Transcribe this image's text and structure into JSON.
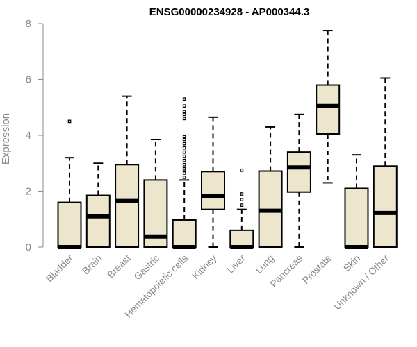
{
  "colors": {
    "box_fill": "#ede6cd",
    "stroke": "#000000",
    "axis": "#8a8a8a"
  },
  "chart_data": {
    "type": "boxplot",
    "title": "ENSG00000234928 - AP000344.3",
    "ylabel": "Expression",
    "xlabel": "",
    "ylim": [
      0,
      8
    ],
    "yticks": [
      0,
      2,
      4,
      6,
      8
    ],
    "grid": false,
    "categories": [
      "Bladder",
      "Brain",
      "Breast",
      "Gastric",
      "Hematopoietic cells",
      "Kidney",
      "Liver",
      "Lung",
      "Pancreas",
      "Prostate",
      "Skin",
      "Unknown / Other"
    ],
    "boxes": [
      {
        "q1": 0,
        "median": 0,
        "q3": 1.6,
        "whisker_low": 0,
        "whisker_high": 3.2,
        "outliers": [
          4.5
        ]
      },
      {
        "q1": 0,
        "median": 1.1,
        "q3": 1.85,
        "whisker_low": 0,
        "whisker_high": 3.0,
        "outliers": []
      },
      {
        "q1": 0,
        "median": 1.65,
        "q3": 2.95,
        "whisker_low": 0,
        "whisker_high": 5.4,
        "outliers": []
      },
      {
        "q1": 0,
        "median": 0.38,
        "q3": 2.4,
        "whisker_low": 0,
        "whisker_high": 3.85,
        "outliers": []
      },
      {
        "q1": 0,
        "median": 0,
        "q3": 0.97,
        "whisker_low": 0,
        "whisker_high": 2.4,
        "outliers": [
          2.5,
          2.65,
          2.8,
          2.95,
          3.1,
          3.25,
          3.4,
          3.55,
          3.7,
          3.85,
          3.95,
          4.6,
          4.75,
          4.85,
          5.05,
          5.3
        ]
      },
      {
        "q1": 1.35,
        "median": 1.82,
        "q3": 2.7,
        "whisker_low": 0,
        "whisker_high": 4.65,
        "outliers": []
      },
      {
        "q1": 0,
        "median": 0,
        "q3": 0.6,
        "whisker_low": 0,
        "whisker_high": 1.35,
        "outliers": [
          1.5,
          1.7,
          1.9,
          2.75
        ]
      },
      {
        "q1": 0,
        "median": 1.3,
        "q3": 2.72,
        "whisker_low": 0,
        "whisker_high": 4.3,
        "outliers": []
      },
      {
        "q1": 1.97,
        "median": 2.85,
        "q3": 3.4,
        "whisker_low": 0,
        "whisker_high": 4.75,
        "outliers": []
      },
      {
        "q1": 4.05,
        "median": 5.05,
        "q3": 5.8,
        "whisker_low": 2.3,
        "whisker_high": 7.75,
        "outliers": []
      },
      {
        "q1": 0,
        "median": 0,
        "q3": 2.1,
        "whisker_low": 0,
        "whisker_high": 3.3,
        "outliers": []
      },
      {
        "q1": 0,
        "median": 1.22,
        "q3": 2.9,
        "whisker_low": 0,
        "whisker_high": 6.05,
        "outliers": []
      }
    ]
  }
}
